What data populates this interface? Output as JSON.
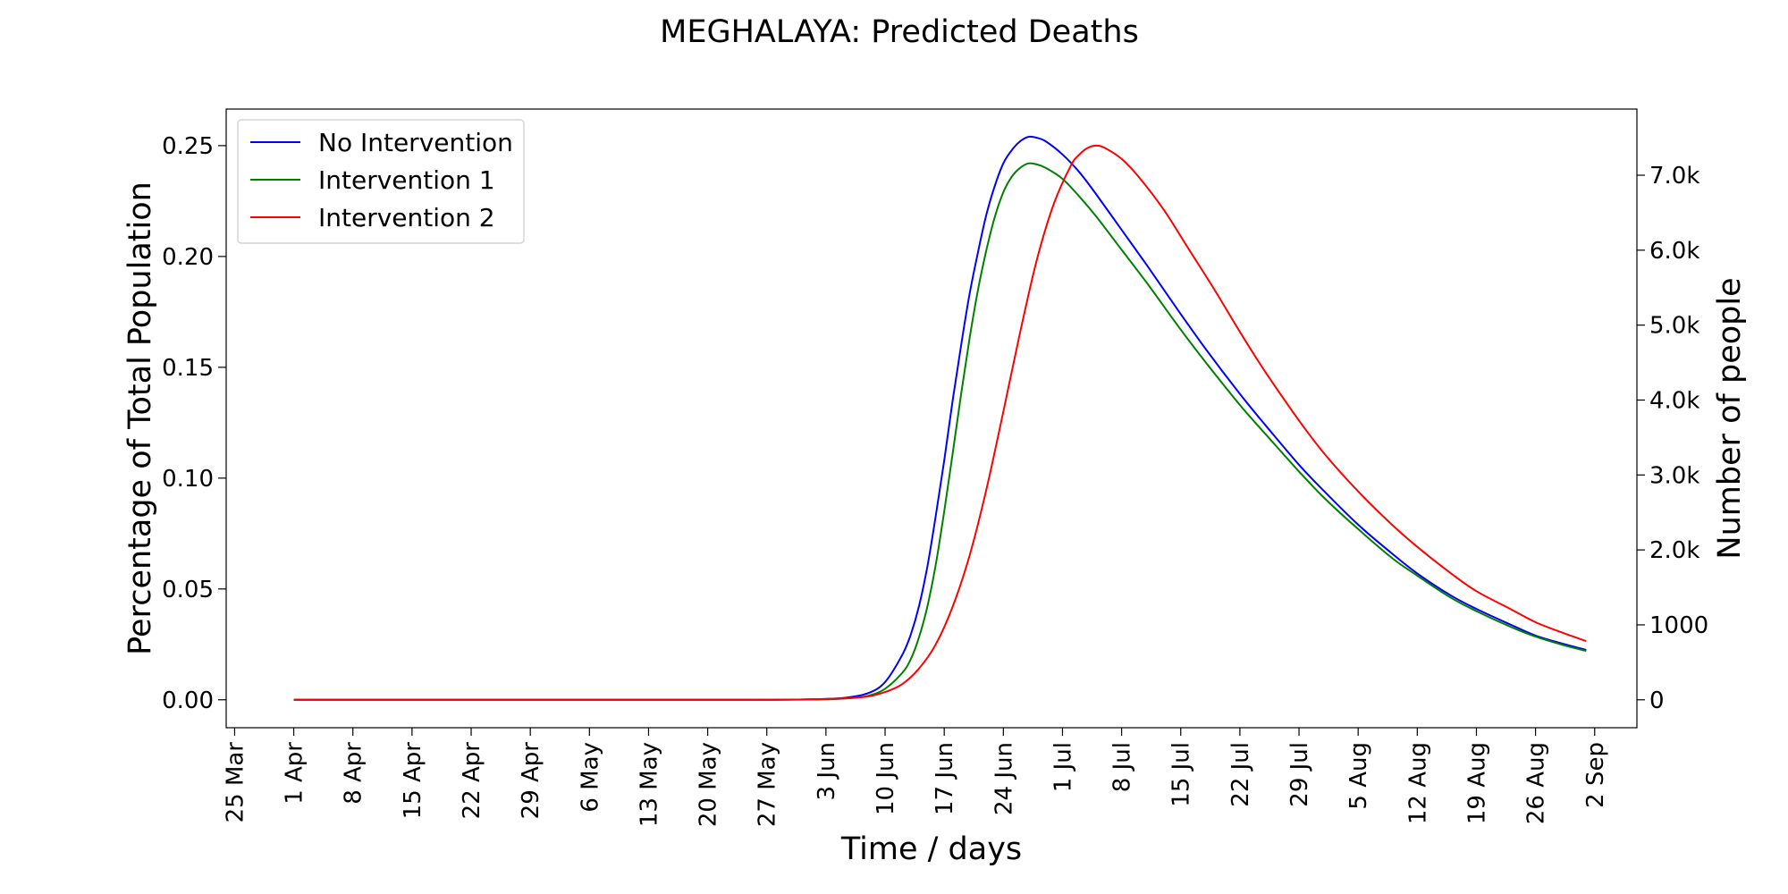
{
  "chart_data": {
    "type": "line",
    "title": "MEGHALAYA: Predicted Deaths",
    "xlabel": "Time / days",
    "ylabel": "Percentage of Total Population",
    "y2label": "Number of people",
    "x_ticks": [
      "25 Mar",
      "1 Apr",
      "8 Apr",
      "15 Apr",
      "22 Apr",
      "29 Apr",
      "6 May",
      "13 May",
      "20 May",
      "27 May",
      "3 Jun",
      "10 Jun",
      "17 Jun",
      "24 Jun",
      "1 Jul",
      "8 Jul",
      "15 Jul",
      "22 Jul",
      "29 Jul",
      "5 Aug",
      "12 Aug",
      "19 Aug",
      "26 Aug",
      "2 Sep"
    ],
    "xlim": [
      "2020-03-24",
      "2020-09-07"
    ],
    "ylim": [
      -0.0126,
      0.2665
    ],
    "y_ticks": [
      0.0,
      0.05,
      0.1,
      0.15,
      0.2,
      0.25
    ],
    "y_tick_labels": [
      "0.00",
      "0.05",
      "0.10",
      "0.15",
      "0.20",
      "0.25"
    ],
    "y2_ticks": [
      0,
      1000,
      2000,
      3000,
      4000,
      5000,
      6000,
      7000
    ],
    "y2_tick_labels": [
      "0",
      "1000",
      "2.0k",
      "3.0k",
      "4.0k",
      "5.0k",
      "6.0k",
      "7.0k"
    ],
    "y2_people_per_percent": 29580,
    "grid": false,
    "legend_position": "top-left",
    "series": [
      {
        "name": "No Intervention",
        "color": "#0000ff",
        "points": [
          [
            "2020-04-01",
            0
          ],
          [
            "2020-05-01",
            0
          ],
          [
            "2020-05-25",
            0
          ],
          [
            "2020-06-01",
            0.0002
          ],
          [
            "2020-06-05",
            0.0008
          ],
          [
            "2020-06-08",
            0.003
          ],
          [
            "2020-06-10",
            0.008
          ],
          [
            "2020-06-12",
            0.02
          ],
          [
            "2020-06-13",
            0.029
          ],
          [
            "2020-06-14",
            0.042
          ],
          [
            "2020-06-15",
            0.06
          ],
          [
            "2020-06-16",
            0.083
          ],
          [
            "2020-06-17",
            0.108
          ],
          [
            "2020-06-18",
            0.135
          ],
          [
            "2020-06-19",
            0.16
          ],
          [
            "2020-06-20",
            0.183
          ],
          [
            "2020-06-21",
            0.202
          ],
          [
            "2020-06-22",
            0.219
          ],
          [
            "2020-06-23",
            0.232
          ],
          [
            "2020-06-24",
            0.242
          ],
          [
            "2020-06-25",
            0.248
          ],
          [
            "2020-06-26",
            0.252
          ],
          [
            "2020-06-27",
            0.254
          ],
          [
            "2020-06-28",
            0.2535
          ],
          [
            "2020-06-29",
            0.252
          ],
          [
            "2020-07-01",
            0.246
          ],
          [
            "2020-07-03",
            0.238
          ],
          [
            "2020-07-05",
            0.228
          ],
          [
            "2020-07-08",
            0.212
          ],
          [
            "2020-07-11",
            0.196
          ],
          [
            "2020-07-15",
            0.174
          ],
          [
            "2020-07-18",
            0.158
          ],
          [
            "2020-07-22",
            0.138
          ],
          [
            "2020-07-25",
            0.124
          ],
          [
            "2020-07-29",
            0.106
          ],
          [
            "2020-08-01",
            0.094
          ],
          [
            "2020-08-05",
            0.079
          ],
          [
            "2020-08-09",
            0.066
          ],
          [
            "2020-08-12",
            0.057
          ],
          [
            "2020-08-16",
            0.047
          ],
          [
            "2020-08-19",
            0.041
          ],
          [
            "2020-08-23",
            0.034
          ],
          [
            "2020-08-26",
            0.029
          ],
          [
            "2020-08-29",
            0.0255
          ],
          [
            "2020-09-01",
            0.0225
          ]
        ]
      },
      {
        "name": "Intervention 1",
        "color": "#008000",
        "points": [
          [
            "2020-04-01",
            0
          ],
          [
            "2020-05-01",
            0
          ],
          [
            "2020-05-25",
            0
          ],
          [
            "2020-06-01",
            0.0001
          ],
          [
            "2020-06-05",
            0.0005
          ],
          [
            "2020-06-08",
            0.0018
          ],
          [
            "2020-06-10",
            0.005
          ],
          [
            "2020-06-12",
            0.012
          ],
          [
            "2020-06-13",
            0.018
          ],
          [
            "2020-06-14",
            0.028
          ],
          [
            "2020-06-15",
            0.042
          ],
          [
            "2020-06-16",
            0.061
          ],
          [
            "2020-06-17",
            0.085
          ],
          [
            "2020-06-18",
            0.111
          ],
          [
            "2020-06-19",
            0.138
          ],
          [
            "2020-06-20",
            0.163
          ],
          [
            "2020-06-21",
            0.185
          ],
          [
            "2020-06-22",
            0.203
          ],
          [
            "2020-06-23",
            0.218
          ],
          [
            "2020-06-24",
            0.229
          ],
          [
            "2020-06-25",
            0.236
          ],
          [
            "2020-06-26",
            0.24
          ],
          [
            "2020-06-27",
            0.242
          ],
          [
            "2020-06-28",
            0.2415
          ],
          [
            "2020-06-29",
            0.24
          ],
          [
            "2020-07-01",
            0.235
          ],
          [
            "2020-07-03",
            0.227
          ],
          [
            "2020-07-05",
            0.218
          ],
          [
            "2020-07-08",
            0.203
          ],
          [
            "2020-07-11",
            0.188
          ],
          [
            "2020-07-15",
            0.167
          ],
          [
            "2020-07-18",
            0.152
          ],
          [
            "2020-07-22",
            0.133
          ],
          [
            "2020-07-25",
            0.12
          ],
          [
            "2020-07-29",
            0.103
          ],
          [
            "2020-08-01",
            0.091
          ],
          [
            "2020-08-05",
            0.077
          ],
          [
            "2020-08-09",
            0.064
          ],
          [
            "2020-08-12",
            0.056
          ],
          [
            "2020-08-16",
            0.046
          ],
          [
            "2020-08-19",
            0.04
          ],
          [
            "2020-08-23",
            0.033
          ],
          [
            "2020-08-26",
            0.0285
          ],
          [
            "2020-08-29",
            0.025
          ],
          [
            "2020-09-01",
            0.022
          ]
        ]
      },
      {
        "name": "Intervention 2",
        "color": "#ff0000",
        "points": [
          [
            "2020-04-01",
            0
          ],
          [
            "2020-05-01",
            0
          ],
          [
            "2020-05-25",
            0
          ],
          [
            "2020-06-01",
            0.0002
          ],
          [
            "2020-06-05",
            0.0006
          ],
          [
            "2020-06-08",
            0.0015
          ],
          [
            "2020-06-10",
            0.0035
          ],
          [
            "2020-06-12",
            0.007
          ],
          [
            "2020-06-14",
            0.014
          ],
          [
            "2020-06-16",
            0.025
          ],
          [
            "2020-06-18",
            0.042
          ],
          [
            "2020-06-20",
            0.065
          ],
          [
            "2020-06-22",
            0.095
          ],
          [
            "2020-06-24",
            0.13
          ],
          [
            "2020-06-26",
            0.166
          ],
          [
            "2020-06-28",
            0.199
          ],
          [
            "2020-06-30",
            0.224
          ],
          [
            "2020-07-02",
            0.241
          ],
          [
            "2020-07-03",
            0.246
          ],
          [
            "2020-07-04",
            0.249
          ],
          [
            "2020-07-05",
            0.25
          ],
          [
            "2020-07-06",
            0.249
          ],
          [
            "2020-07-08",
            0.244
          ],
          [
            "2020-07-10",
            0.236
          ],
          [
            "2020-07-13",
            0.221
          ],
          [
            "2020-07-16",
            0.203
          ],
          [
            "2020-07-19",
            0.185
          ],
          [
            "2020-07-22",
            0.166
          ],
          [
            "2020-07-25",
            0.148
          ],
          [
            "2020-07-29",
            0.126
          ],
          [
            "2020-08-01",
            0.111
          ],
          [
            "2020-08-05",
            0.094
          ],
          [
            "2020-08-09",
            0.079
          ],
          [
            "2020-08-12",
            0.069
          ],
          [
            "2020-08-16",
            0.057
          ],
          [
            "2020-08-19",
            0.049
          ],
          [
            "2020-08-23",
            0.041
          ],
          [
            "2020-08-26",
            0.035
          ],
          [
            "2020-08-29",
            0.0305
          ],
          [
            "2020-09-01",
            0.0265
          ]
        ]
      }
    ]
  }
}
